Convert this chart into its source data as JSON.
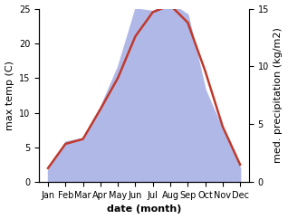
{
  "months": [
    "Jan",
    "Feb",
    "Mar",
    "Apr",
    "May",
    "Jun",
    "Jul",
    "Aug",
    "Sep",
    "Oct",
    "Nov",
    "Dec"
  ],
  "month_positions": [
    0,
    1,
    2,
    3,
    4,
    5,
    6,
    7,
    8,
    9,
    10,
    11
  ],
  "temp": [
    2.0,
    5.5,
    6.2,
    10.5,
    15.0,
    21.0,
    24.5,
    25.5,
    23.0,
    16.0,
    8.0,
    2.5
  ],
  "precip": [
    1.0,
    3.5,
    3.8,
    6.5,
    10.0,
    15.0,
    14.8,
    15.5,
    14.5,
    8.0,
    4.5,
    1.2
  ],
  "temp_color": "#c0392b",
  "precip_color": "#b0b8e8",
  "temp_ylim": [
    0,
    25
  ],
  "precip_ylim": [
    0,
    15
  ],
  "temp_yticks": [
    0,
    5,
    10,
    15,
    20,
    25
  ],
  "precip_yticks": [
    0,
    5,
    10,
    15
  ],
  "xlabel": "date (month)",
  "ylabel_left": "max temp (C)",
  "ylabel_right": "med. precipitation (kg/m2)",
  "label_fontsize": 8,
  "tick_fontsize": 7,
  "line_width": 1.8,
  "background_color": "#ffffff"
}
